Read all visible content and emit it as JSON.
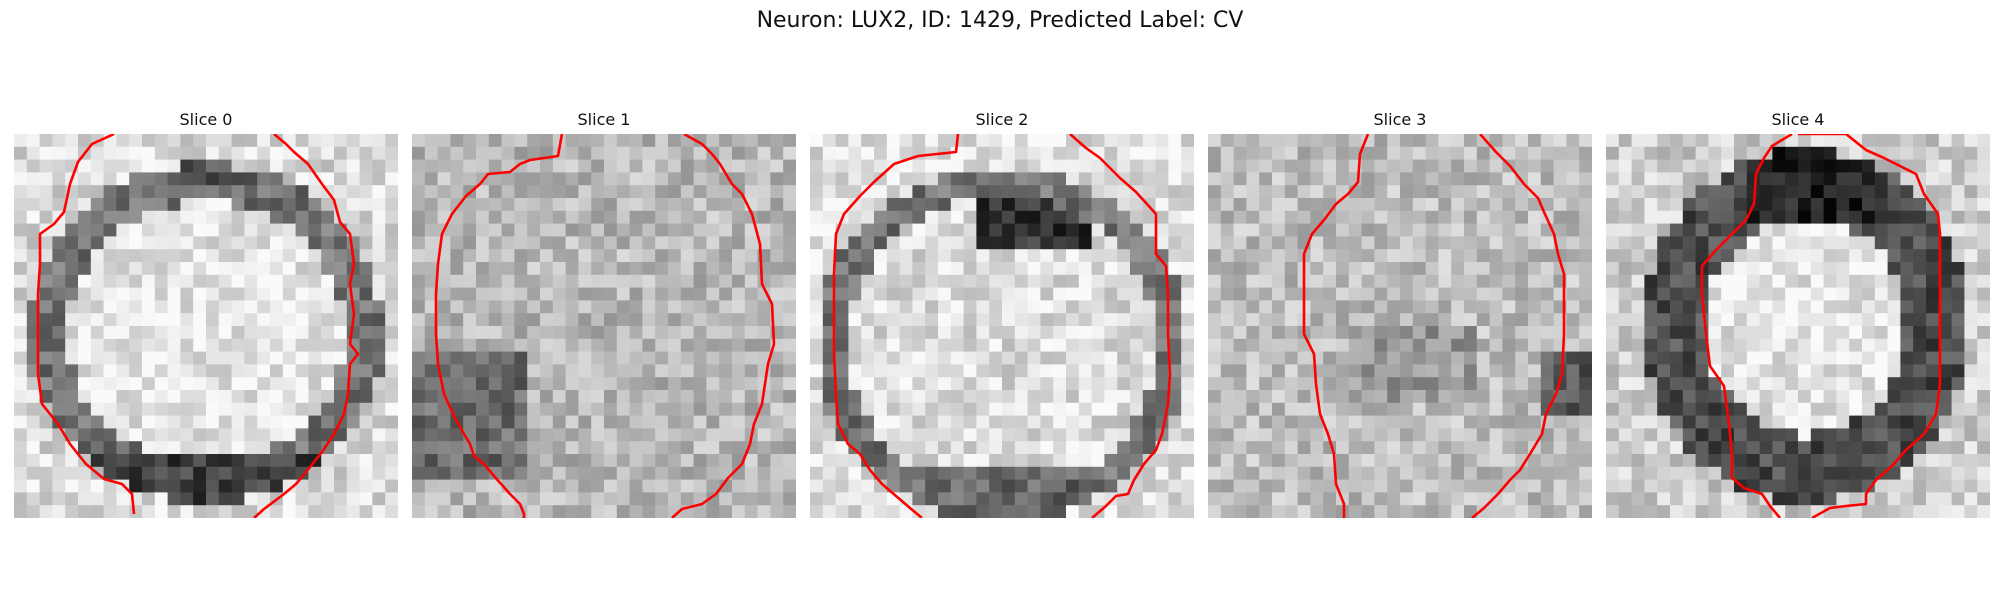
{
  "figure": {
    "title": "Neuron: LUX2, ID: 1429, Predicted Label: CV",
    "contour_color": "#ff0000"
  },
  "slices": [
    {
      "title": "Slice 0"
    },
    {
      "title": "Slice 1"
    },
    {
      "title": "Slice 2"
    },
    {
      "title": "Slice 3"
    },
    {
      "title": "Slice 4"
    }
  ]
}
